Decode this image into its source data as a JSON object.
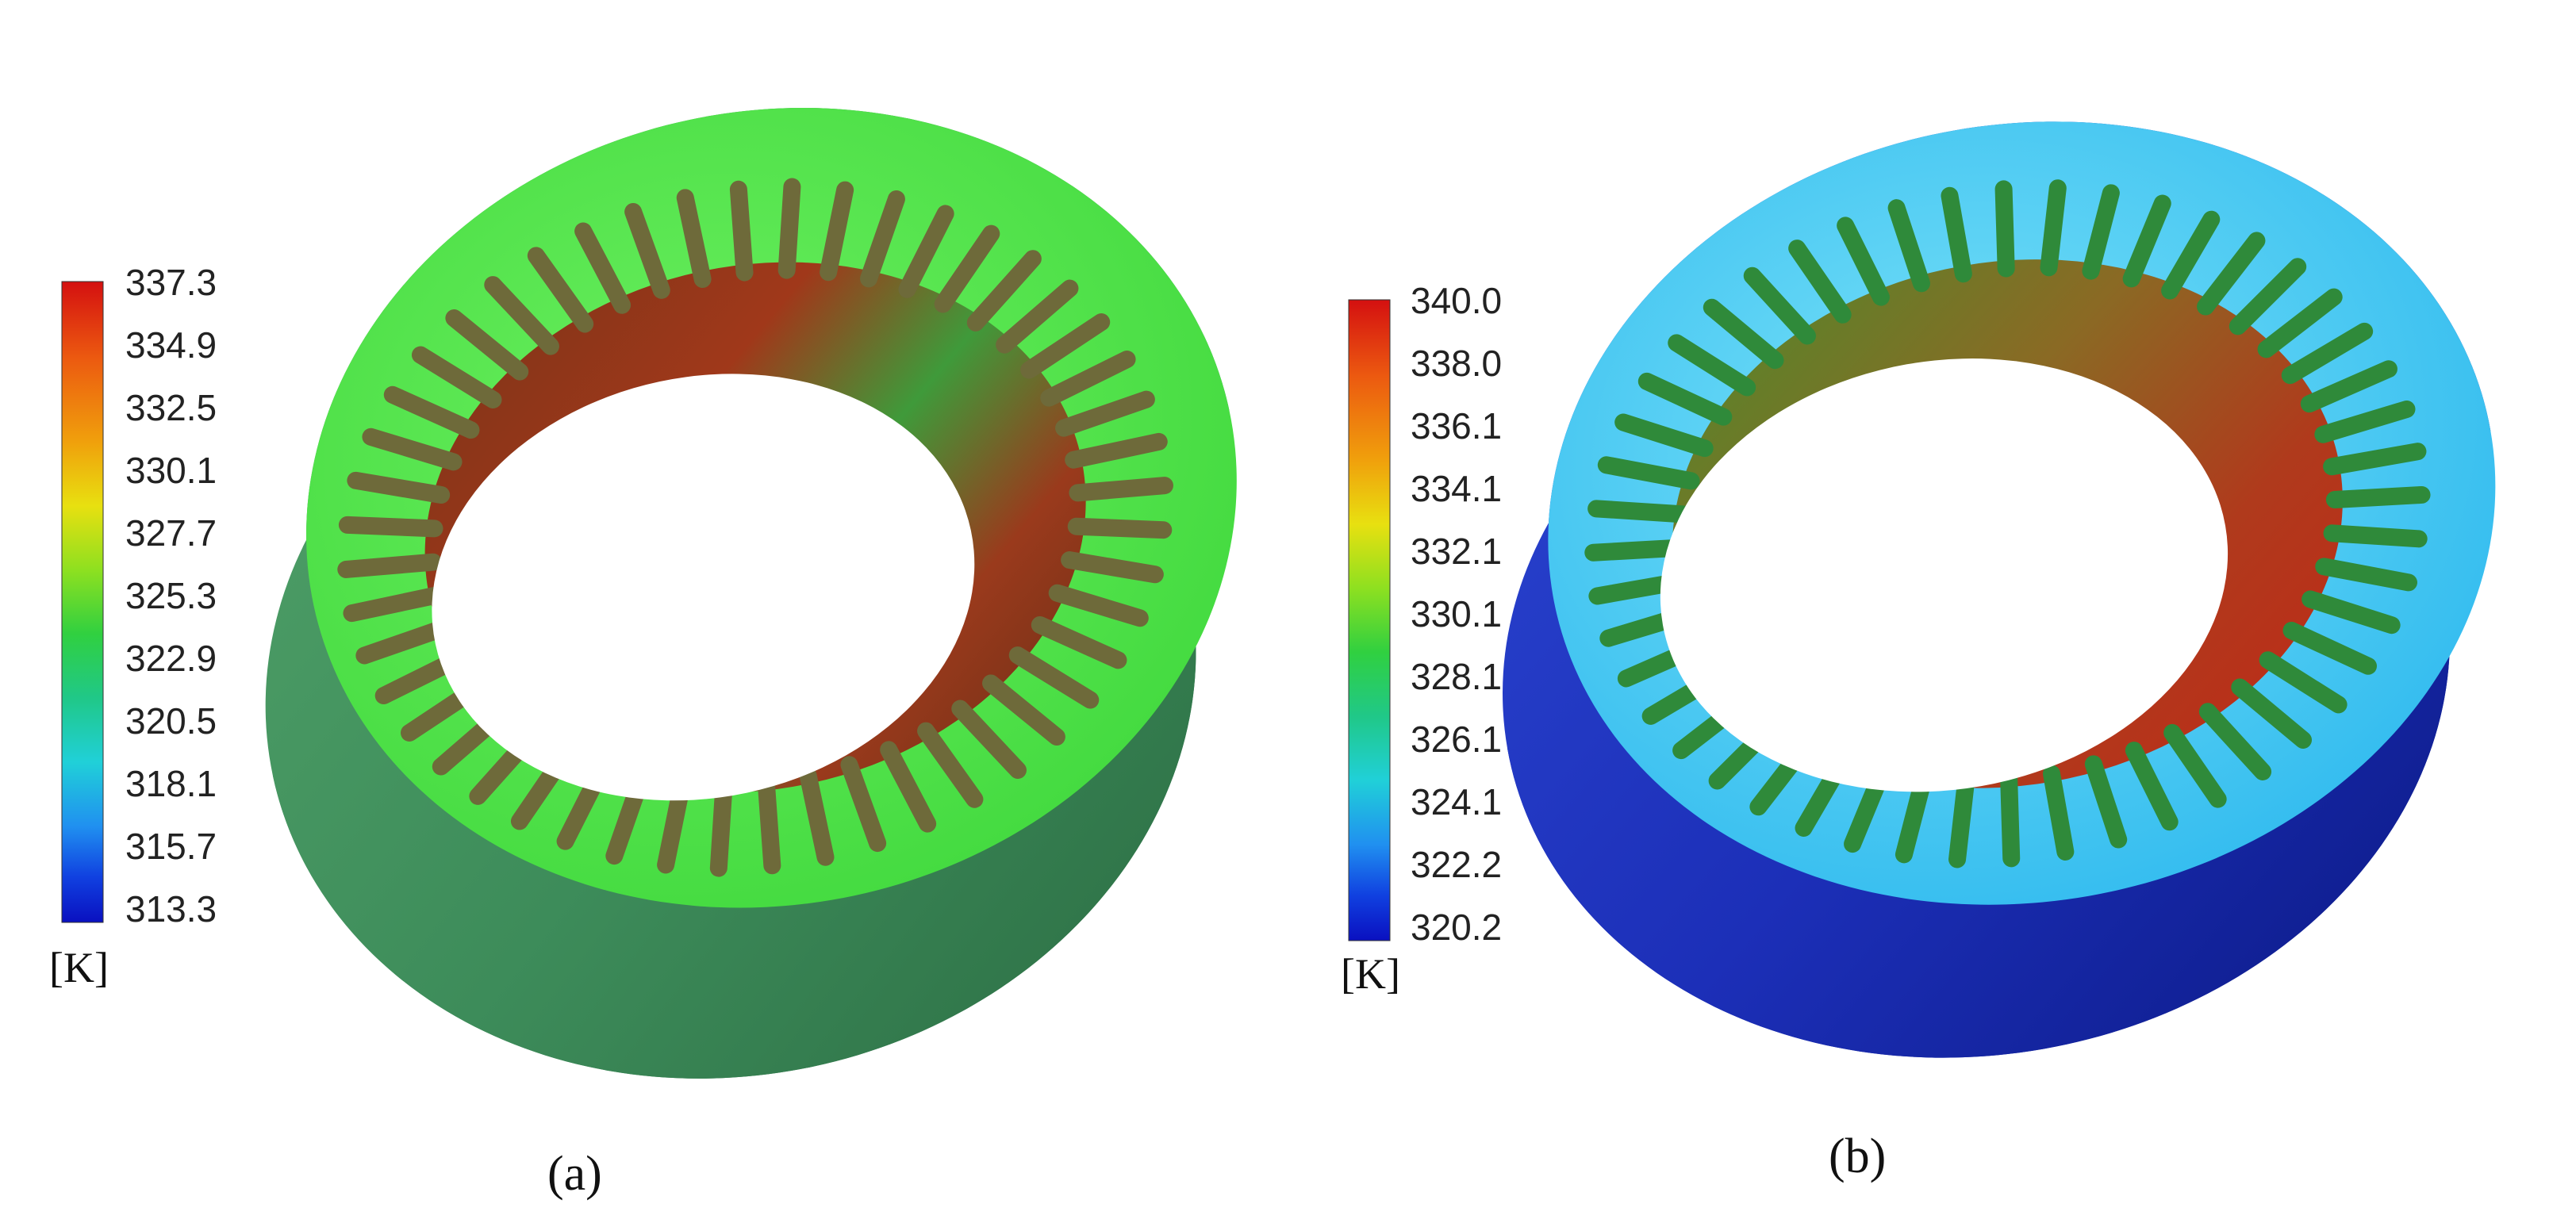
{
  "panels": [
    {
      "id": "a",
      "caption": "(a)",
      "unit": "[K]",
      "ticks": [
        "337.3",
        "334.9",
        "332.5",
        "330.1",
        "327.7",
        "325.3",
        "322.9",
        "320.5",
        "318.1",
        "315.7",
        "313.3"
      ],
      "colors": {
        "outer": "#3d8c5a",
        "outer_dark": "#2f7447",
        "face": "#4ee64a",
        "face_hi": "#6cf060",
        "bore": "#8e3a1c",
        "bore_hot": "#a3301a",
        "bore_green": "#3a9a3a",
        "slot": "#6e6a3a"
      }
    },
    {
      "id": "b",
      "caption": "(b)",
      "unit": "[K]",
      "ticks": [
        "340.0",
        "338.0",
        "336.1",
        "334.1",
        "332.1",
        "330.1",
        "328.1",
        "326.1",
        "324.1",
        "322.2",
        "320.2"
      ],
      "colors": {
        "outer": "#1c2fb8",
        "outer_dark": "#0f1e8e",
        "face": "#33c8f0",
        "face_hi": "#6fdcf7",
        "bore": "#6a7a2a",
        "bore_hot": "#b0301c",
        "bore_green": "#3aa03a",
        "slot": "#2f8a3a"
      }
    }
  ],
  "colorbar_colors": [
    "#d41010",
    "#ec5a10",
    "#f0a00c",
    "#e8e010",
    "#8ee020",
    "#30d040",
    "#20c888",
    "#20d0d8",
    "#2090f0",
    "#1040e0",
    "#0a10c0"
  ]
}
